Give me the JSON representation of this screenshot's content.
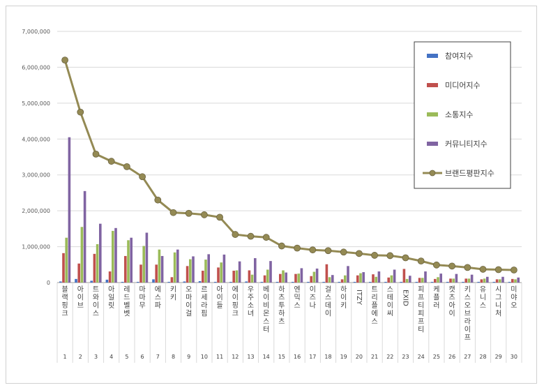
{
  "chart_data": {
    "type": "bar",
    "yticks": [
      "0",
      "1,000,000",
      "2,000,000",
      "3,000,000",
      "4,000,000",
      "5,000,000",
      "6,000,000",
      "7,000,000"
    ],
    "ylim": [
      0,
      7000000
    ],
    "legend_position": "top-right",
    "grid": true,
    "categories": [
      "블랙핑크",
      "아이브",
      "트와이스",
      "아일릿",
      "레드벨벳",
      "마마무",
      "에스파",
      "키키",
      "오마이걸",
      "르세라핌",
      "아이들",
      "에이핑크",
      "우주소녀",
      "베이비몬스터",
      "하츠투하츠",
      "엔믹스",
      "이즈나",
      "걸스데이",
      "하이키",
      "ITZY",
      "트리플에스",
      "스테이씨",
      "EXID",
      "피프티피프티",
      "케플러",
      "캣츠아이",
      "키스오브라이프",
      "유니스",
      "시그니처",
      "미야오"
    ],
    "indices": [
      "1",
      "2",
      "3",
      "4",
      "5",
      "6",
      "7",
      "8",
      "9",
      "10",
      "11",
      "12",
      "13",
      "14",
      "15",
      "16",
      "17",
      "18",
      "19",
      "20",
      "21",
      "22",
      "23",
      "24",
      "25",
      "26",
      "27",
      "28",
      "29",
      "30"
    ],
    "series": [
      {
        "name": "참여지수",
        "type": "bar",
        "color": "#4472C4",
        "values": [
          30000,
          100000,
          50000,
          80000,
          20000,
          20000,
          90000,
          20000,
          30000,
          40000,
          20000,
          20000,
          30000,
          20000,
          20000,
          20000,
          20000,
          20000,
          20000,
          20000,
          20000,
          20000,
          20000,
          20000,
          20000,
          20000,
          20000,
          20000,
          20000,
          20000
        ]
      },
      {
        "name": "미디어지수",
        "type": "bar",
        "color": "#C0504D",
        "values": [
          820000,
          530000,
          800000,
          310000,
          740000,
          500000,
          500000,
          150000,
          460000,
          330000,
          420000,
          330000,
          340000,
          200000,
          240000,
          240000,
          180000,
          510000,
          90000,
          200000,
          230000,
          140000,
          380000,
          130000,
          100000,
          110000,
          110000,
          90000,
          90000,
          100000
        ]
      },
      {
        "name": "소통지수",
        "type": "bar",
        "color": "#9BBB59",
        "values": [
          1250000,
          1550000,
          1070000,
          1440000,
          1180000,
          1020000,
          920000,
          840000,
          650000,
          640000,
          560000,
          340000,
          220000,
          360000,
          340000,
          250000,
          300000,
          150000,
          200000,
          260000,
          160000,
          200000,
          100000,
          130000,
          150000,
          110000,
          110000,
          110000,
          90000,
          90000
        ]
      },
      {
        "name": "커뮤니티지수",
        "type": "bar",
        "color": "#8064A2",
        "values": [
          4050000,
          2550000,
          1640000,
          1520000,
          1250000,
          1390000,
          740000,
          920000,
          730000,
          790000,
          780000,
          590000,
          680000,
          600000,
          280000,
          400000,
          390000,
          210000,
          460000,
          290000,
          310000,
          360000,
          190000,
          310000,
          250000,
          240000,
          220000,
          160000,
          160000,
          140000
        ]
      },
      {
        "name": "브랜드평판지수",
        "type": "line",
        "color": "#948A54",
        "values": [
          6200000,
          4750000,
          3580000,
          3380000,
          3230000,
          2950000,
          2300000,
          1950000,
          1930000,
          1890000,
          1820000,
          1340000,
          1290000,
          1260000,
          1020000,
          960000,
          910000,
          890000,
          850000,
          810000,
          760000,
          750000,
          690000,
          600000,
          490000,
          460000,
          420000,
          370000,
          360000,
          350000
        ]
      }
    ]
  }
}
